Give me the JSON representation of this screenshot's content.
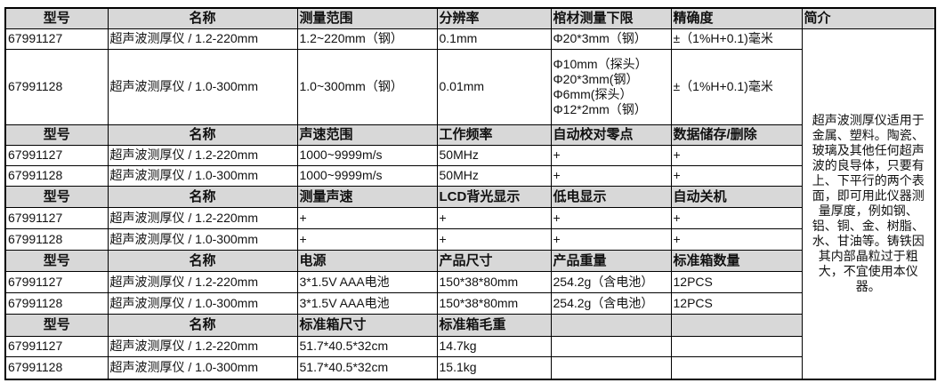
{
  "intro_header": "简介",
  "intro_text": "超声波测厚仪适用于金属、塑料。陶瓷、玻璃及其他任何超声波的良导体，只要有上、下平行的两个表面，即可用此仪器测量厚度，例如钢、铝、铜、金、树脂、水、甘油等。铸铁因其内部晶粒过于粗大，不宜使用本仪器。",
  "header_fill": "#d8d8d8",
  "sections": [
    {
      "headers": [
        "型号",
        "名称",
        "测量范围",
        "分辨率",
        "棺材测量下限",
        "精确度"
      ],
      "rows": [
        [
          "67991127",
          "超声波测厚仪 / 1.2-220mm",
          "1.2~220mm（钢）",
          "0.1mm",
          "Φ20*3mm（钢）",
          "±（1%H+0.1)毫米"
        ],
        [
          "67991128",
          "超声波测厚仪 / 1.0-300mm",
          "1.0~300mm（钢）",
          "0.01mm",
          "Φ10mm（探头）\nΦ20*3mm(钢）\nΦ6mm(探头）\nΦ12*2mm（钢）",
          "±（1%H+0.1)毫米"
        ]
      ]
    },
    {
      "headers": [
        "型号",
        "名称",
        "声速范围",
        "工作频率",
        "自动校对零点",
        "数据储存/删除"
      ],
      "rows": [
        [
          "67991127",
          "超声波测厚仪 / 1.2-220mm",
          "1000~9999m/s",
          "50MHz",
          "+",
          "+"
        ],
        [
          "67991128",
          "超声波测厚仪 / 1.0-300mm",
          "1000~9999m/s",
          "50MHz",
          "+",
          "+"
        ]
      ]
    },
    {
      "headers": [
        "型号",
        "名称",
        "测量声速",
        "LCD背光显示",
        "低电显示",
        "自动关机"
      ],
      "rows": [
        [
          "67991127",
          "超声波测厚仪 / 1.2-220mm",
          "+",
          "+",
          "+",
          "+"
        ],
        [
          "67991128",
          "超声波测厚仪 / 1.0-300mm",
          "+",
          "+",
          "+",
          "+"
        ]
      ]
    },
    {
      "headers": [
        "型号",
        "名称",
        "电源",
        "产品尺寸",
        "产品重量",
        "标准箱数量"
      ],
      "rows": [
        [
          "67991127",
          "超声波测厚仪 / 1.2-220mm",
          "3*1.5V AAA电池",
          "150*38*80mm",
          "254.2g（含电池）",
          "12PCS"
        ],
        [
          "67991128",
          "超声波测厚仪 / 1.0-300mm",
          "3*1.5V AAA电池",
          "150*38*80mm",
          "254.2g（含电池）",
          "12PCS"
        ]
      ]
    },
    {
      "headers": [
        "型号",
        "名称",
        "标准箱尺寸",
        "标准箱毛重",
        "",
        ""
      ],
      "rows": [
        [
          "67991127",
          "超声波测厚仪 / 1.2-220mm",
          "51.7*40.5*32cm",
          "14.7kg",
          "",
          ""
        ],
        [
          "67991128",
          "超声波测厚仪 / 1.0-300mm",
          "51.7*40.5*32cm",
          "15.1kg",
          "",
          ""
        ]
      ]
    }
  ]
}
